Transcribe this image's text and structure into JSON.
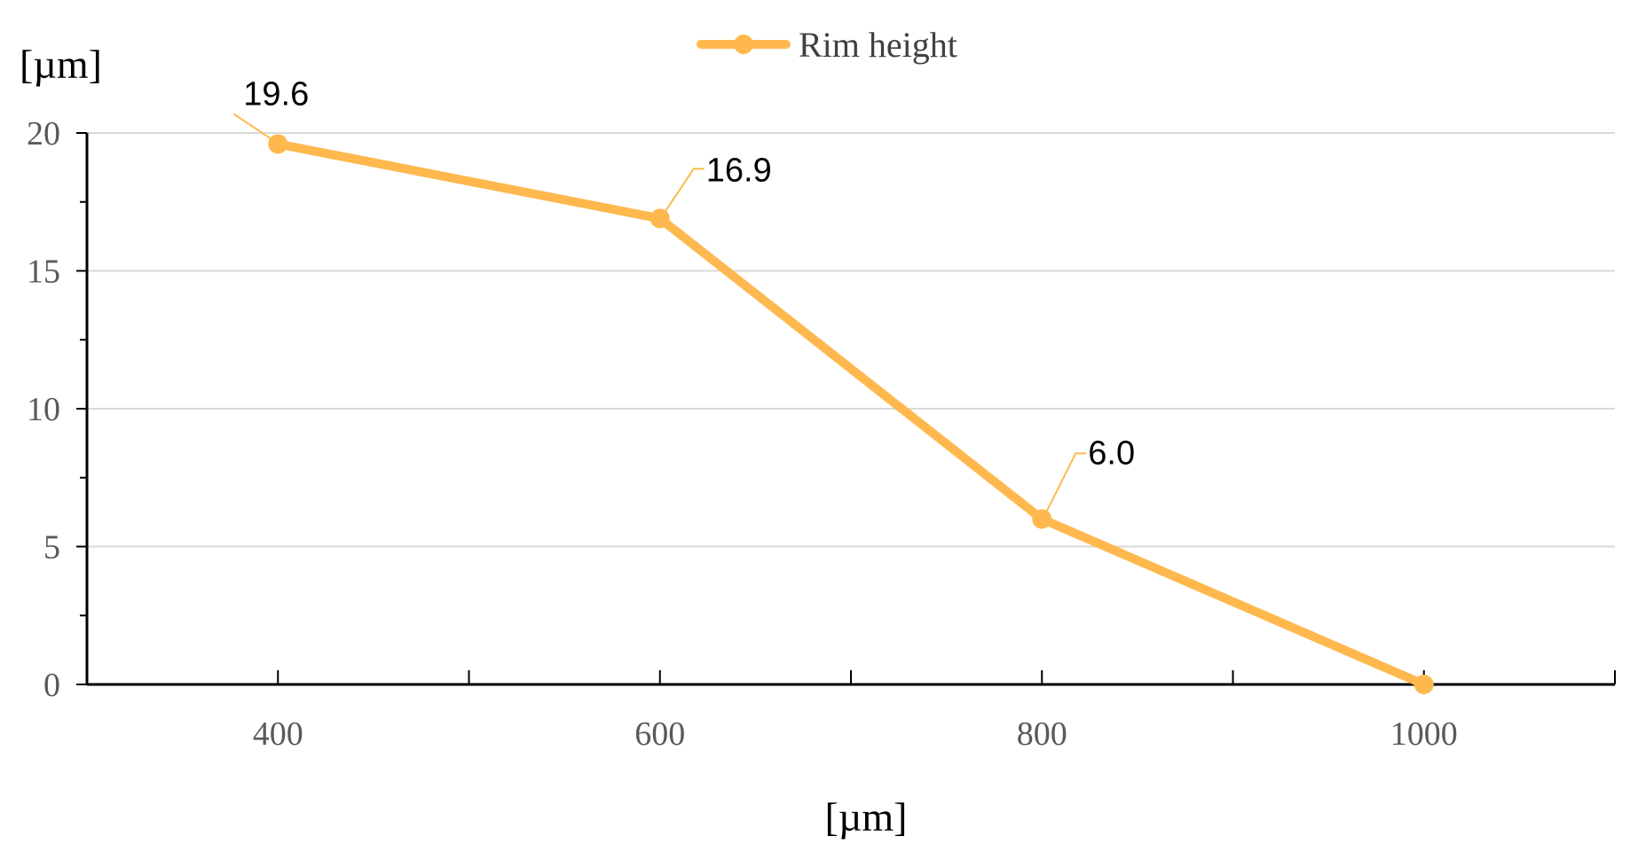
{
  "chart_data": {
    "type": "line",
    "title": "",
    "xlabel": "[µm]",
    "ylabel": "[µm]",
    "x_ticks": [
      400,
      600,
      800,
      1000
    ],
    "y_ticks": [
      0,
      5,
      10,
      15,
      20
    ],
    "xlim": [
      300,
      1100
    ],
    "ylim": [
      0,
      20
    ],
    "grid": "horizontal",
    "legend_position": "top-center",
    "series": [
      {
        "name": "Rim height",
        "color": "#FFB84D",
        "x": [
          400,
          600,
          800,
          1000
        ],
        "y": [
          19.6,
          16.9,
          6.0,
          0
        ],
        "data_labels": [
          "19.6",
          "16.9",
          "6.0",
          ""
        ]
      }
    ]
  }
}
